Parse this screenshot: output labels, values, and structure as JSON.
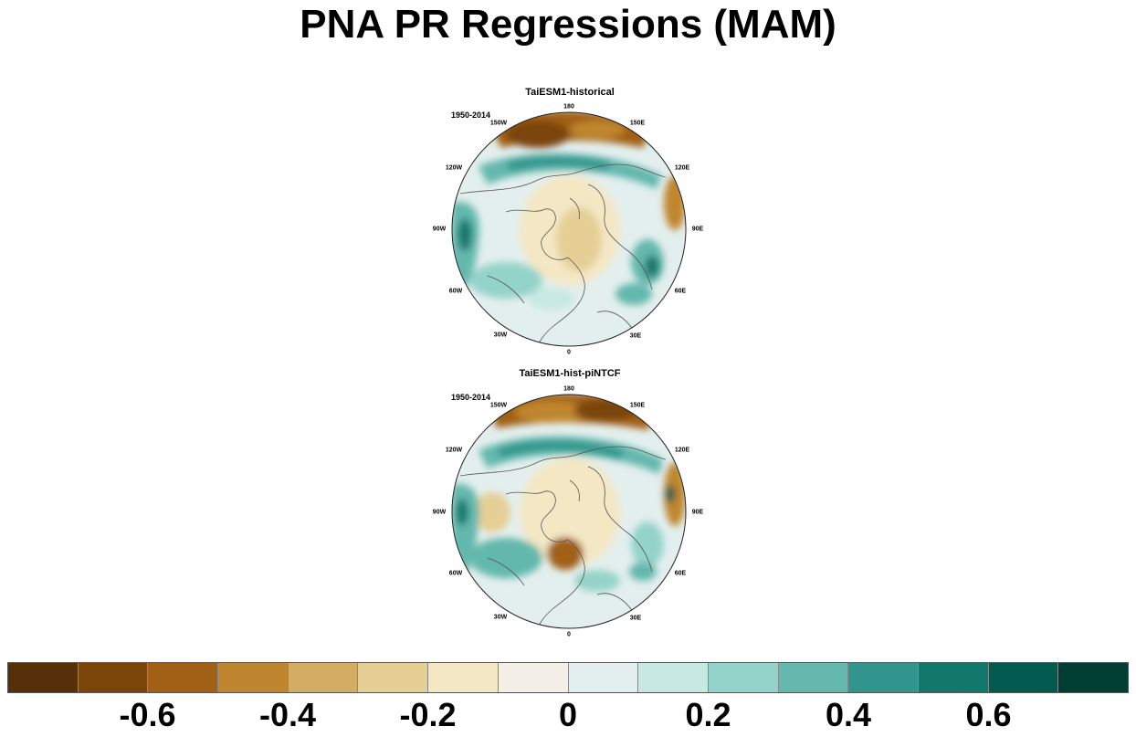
{
  "title": "PNA PR Regressions (MAM)",
  "panels": [
    {
      "title": "TaiESM1-historical",
      "period": "1950-2014",
      "lon_labels": [
        "180",
        "150E",
        "120E",
        "90E",
        "60E",
        "30E",
        "0",
        "30W",
        "60W",
        "90W",
        "120W",
        "150W"
      ]
    },
    {
      "title": "TaiESM1-hist-piNTCF",
      "period": "1950-2014",
      "lon_labels": [
        "180",
        "150E",
        "120E",
        "90E",
        "60E",
        "30E",
        "0",
        "30W",
        "60W",
        "90W",
        "120W",
        "150W"
      ]
    }
  ],
  "colorbar": {
    "colors": [
      "#553008",
      "#7b4409",
      "#a16016",
      "#c0862f",
      "#d4ad64",
      "#e5cf94",
      "#f4e7c4",
      "#f4f0e7",
      "#e3efee",
      "#c6e9e3",
      "#94d3ca",
      "#64b8ad",
      "#33968e",
      "#13786c",
      "#015b50",
      "#003d32"
    ],
    "tick_labels": [
      "-0.6",
      "-0.4",
      "-0.2",
      "0",
      "0.2",
      "0.4",
      "0.6"
    ]
  }
}
